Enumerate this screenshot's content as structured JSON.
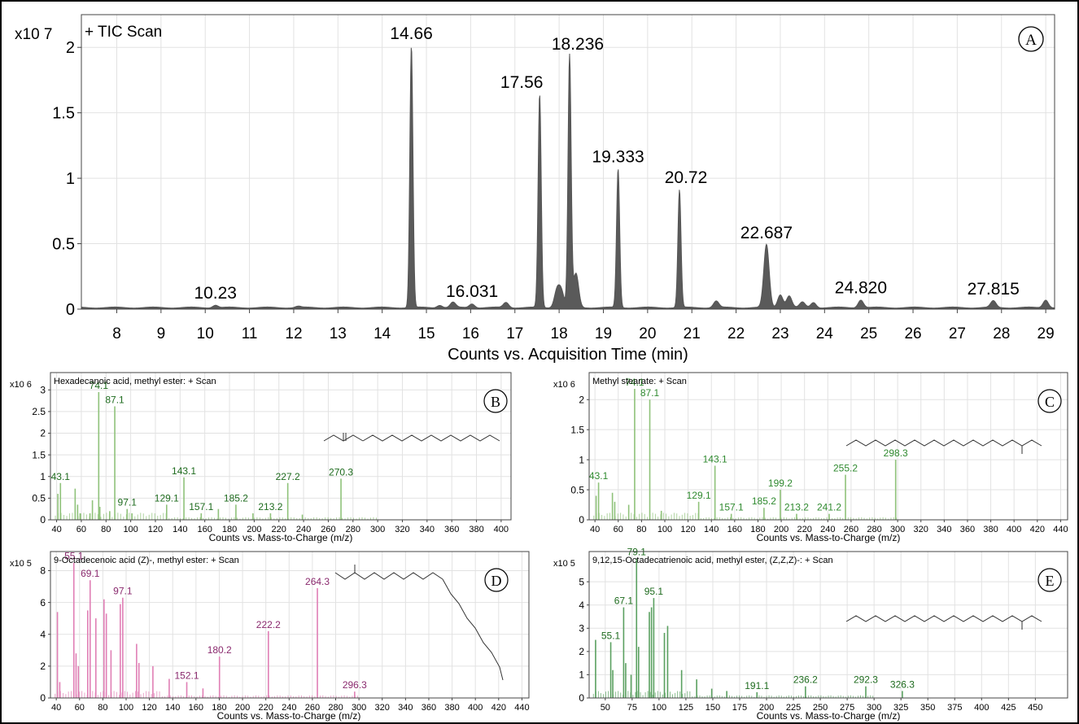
{
  "chart_data": [
    {
      "panel": "A",
      "type": "line",
      "title": "+ TIC Scan",
      "multiplier": "x10 7",
      "xlabel": "Counts vs. Acquisition Time (min)",
      "ylabel": "",
      "xlim": [
        7.2,
        29.2
      ],
      "ylim": [
        0,
        2.25
      ],
      "xticks": [
        "8",
        "9",
        "10",
        "11",
        "12",
        "13",
        "14",
        "15",
        "16",
        "17",
        "18",
        "19",
        "20",
        "21",
        "22",
        "23",
        "24",
        "25",
        "26",
        "27",
        "28",
        "29"
      ],
      "yticks": [
        "0",
        "0.5",
        "1",
        "1.5",
        "2"
      ],
      "grid": true,
      "line_color": "#555555",
      "peaks": [
        {
          "rt": 10.23,
          "height": 0.02,
          "label": "10.23"
        },
        {
          "rt": 12.1,
          "height": 0.01
        },
        {
          "rt": 14.66,
          "height": 2.0,
          "label": "14.66"
        },
        {
          "rt": 15.3,
          "height": 0.02
        },
        {
          "rt": 15.6,
          "height": 0.04
        },
        {
          "rt": 16.031,
          "height": 0.03,
          "label": "16.031"
        },
        {
          "rt": 16.8,
          "height": 0.04
        },
        {
          "rt": 17.56,
          "height": 1.63,
          "label": "17.56"
        },
        {
          "rt": 17.95,
          "height": 0.13
        },
        {
          "rt": 18.05,
          "height": 0.12
        },
        {
          "rt": 18.236,
          "height": 1.92,
          "label": "18.236"
        },
        {
          "rt": 18.38,
          "height": 0.26
        },
        {
          "rt": 19.333,
          "height": 1.06,
          "label": "19.333"
        },
        {
          "rt": 20.72,
          "height": 0.9,
          "label": "20.72"
        },
        {
          "rt": 21.55,
          "height": 0.05
        },
        {
          "rt": 22.687,
          "height": 0.48,
          "label": "22.687"
        },
        {
          "rt": 23.0,
          "height": 0.1
        },
        {
          "rt": 23.2,
          "height": 0.09
        },
        {
          "rt": 23.5,
          "height": 0.04
        },
        {
          "rt": 23.75,
          "height": 0.04
        },
        {
          "rt": 24.82,
          "height": 0.06,
          "label": "24.820"
        },
        {
          "rt": 27.815,
          "height": 0.05,
          "label": "27.815"
        },
        {
          "rt": 29.0,
          "height": 0.06
        }
      ]
    },
    {
      "panel": "B",
      "type": "bar",
      "title": "Hexadecanoic acid, methyl ester: + Scan",
      "multiplier": "x10 6",
      "xlabel": "Counts vs. Mass-to-Charge (m/z)",
      "ylabel": "",
      "xlim": [
        35,
        408
      ],
      "ylim": [
        0,
        3.4
      ],
      "xticks": [
        "40",
        "60",
        "80",
        "100",
        "120",
        "140",
        "160",
        "180",
        "200",
        "220",
        "240",
        "260",
        "280",
        "300",
        "320",
        "340",
        "360",
        "380",
        "400"
      ],
      "yticks": [
        "0",
        "0.5",
        "1",
        "1.5",
        "2",
        "2.5",
        "3"
      ],
      "bar_color": "#8fc27a",
      "label_color": "#1e6b1e",
      "peaks": [
        {
          "mz": 41,
          "value": 0.6
        },
        {
          "mz": 43.1,
          "value": 0.85,
          "label": "43.1"
        },
        {
          "mz": 55,
          "value": 0.72
        },
        {
          "mz": 57,
          "value": 0.35
        },
        {
          "mz": 59,
          "value": 0.15
        },
        {
          "mz": 67,
          "value": 0.15
        },
        {
          "mz": 69,
          "value": 0.45
        },
        {
          "mz": 74.1,
          "value": 2.95,
          "label": "74.1"
        },
        {
          "mz": 75,
          "value": 0.3
        },
        {
          "mz": 83,
          "value": 0.2
        },
        {
          "mz": 87.1,
          "value": 2.62,
          "label": "87.1"
        },
        {
          "mz": 97.1,
          "value": 0.25,
          "label": "97.1"
        },
        {
          "mz": 101,
          "value": 0.15
        },
        {
          "mz": 129.1,
          "value": 0.35,
          "label": "129.1"
        },
        {
          "mz": 143.1,
          "value": 0.98,
          "label": "143.1"
        },
        {
          "mz": 157.1,
          "value": 0.15,
          "label": "157.1"
        },
        {
          "mz": 171,
          "value": 0.25
        },
        {
          "mz": 185.2,
          "value": 0.35,
          "label": "185.2"
        },
        {
          "mz": 199,
          "value": 0.15
        },
        {
          "mz": 213.2,
          "value": 0.15,
          "label": "213.2"
        },
        {
          "mz": 227.2,
          "value": 0.85,
          "label": "227.2"
        },
        {
          "mz": 239,
          "value": 0.12
        },
        {
          "mz": 270.3,
          "value": 0.95,
          "label": "270.3"
        }
      ]
    },
    {
      "panel": "C",
      "type": "bar",
      "title": "Methyl stearate: + Scan",
      "multiplier": "x10 6",
      "xlabel": "Counts vs. Mass-to-Charge (m/z)",
      "ylabel": "",
      "xlim": [
        35,
        446
      ],
      "ylim": [
        0,
        2.45
      ],
      "xticks": [
        "40",
        "60",
        "80",
        "100",
        "120",
        "140",
        "160",
        "180",
        "200",
        "220",
        "240",
        "260",
        "280",
        "300",
        "320",
        "340",
        "360",
        "380",
        "400",
        "420",
        "440"
      ],
      "yticks": [
        "0",
        "0.5",
        "1",
        "1.5",
        "2"
      ],
      "bar_color": "#8fc27a",
      "label_color": "#2f8a2f",
      "peaks": [
        {
          "mz": 41,
          "value": 0.4
        },
        {
          "mz": 43.1,
          "value": 0.62,
          "label": "43.1"
        },
        {
          "mz": 55,
          "value": 0.45
        },
        {
          "mz": 57,
          "value": 0.3
        },
        {
          "mz": 69,
          "value": 0.25
        },
        {
          "mz": 74.1,
          "value": 2.18,
          "label": "74.1"
        },
        {
          "mz": 87.1,
          "value": 2.0,
          "label": "87.1"
        },
        {
          "mz": 97,
          "value": 0.15
        },
        {
          "mz": 129.1,
          "value": 0.3,
          "label": "129.1"
        },
        {
          "mz": 143.1,
          "value": 0.9,
          "label": "143.1"
        },
        {
          "mz": 157.1,
          "value": 0.1,
          "label": "157.1"
        },
        {
          "mz": 185.2,
          "value": 0.2,
          "label": "185.2"
        },
        {
          "mz": 199.2,
          "value": 0.5,
          "label": "199.2"
        },
        {
          "mz": 213.2,
          "value": 0.1,
          "label": "213.2"
        },
        {
          "mz": 241.2,
          "value": 0.1,
          "label": "241.2"
        },
        {
          "mz": 255.2,
          "value": 0.75,
          "label": "255.2"
        },
        {
          "mz": 298.3,
          "value": 1.0,
          "label": "298.3"
        }
      ]
    },
    {
      "panel": "D",
      "type": "bar",
      "title": "9-Octadecenoic acid (Z)-, methyl ester: + Scan",
      "multiplier": "x10 5",
      "xlabel": "Counts vs. Mass-to-Charge (m/z)",
      "ylabel": "",
      "xlim": [
        35,
        446
      ],
      "ylim": [
        0,
        9.2
      ],
      "xticks": [
        "40",
        "60",
        "80",
        "100",
        "120",
        "140",
        "160",
        "180",
        "200",
        "220",
        "240",
        "260",
        "280",
        "300",
        "320",
        "340",
        "360",
        "380",
        "400",
        "420",
        "440"
      ],
      "yticks": [
        "0",
        "2",
        "4",
        "6",
        "8"
      ],
      "bar_color": "#e07fb5",
      "label_color": "#8a2a6e",
      "peaks": [
        {
          "mz": 41,
          "value": 5.4
        },
        {
          "mz": 43,
          "value": 1.0
        },
        {
          "mz": 55.1,
          "value": 8.5,
          "label": "55.1"
        },
        {
          "mz": 57,
          "value": 2.8
        },
        {
          "mz": 59,
          "value": 2.0
        },
        {
          "mz": 67,
          "value": 5.5
        },
        {
          "mz": 69.1,
          "value": 7.4,
          "label": "69.1"
        },
        {
          "mz": 74,
          "value": 5.0
        },
        {
          "mz": 81,
          "value": 6.2
        },
        {
          "mz": 83,
          "value": 5.3
        },
        {
          "mz": 87,
          "value": 3.0
        },
        {
          "mz": 95,
          "value": 5.9
        },
        {
          "mz": 97.1,
          "value": 6.3,
          "label": "97.1"
        },
        {
          "mz": 109,
          "value": 3.4
        },
        {
          "mz": 111,
          "value": 2.2
        },
        {
          "mz": 123,
          "value": 2.0
        },
        {
          "mz": 137,
          "value": 1.2
        },
        {
          "mz": 152.1,
          "value": 1.0,
          "label": "152.1"
        },
        {
          "mz": 166,
          "value": 0.6
        },
        {
          "mz": 180.2,
          "value": 2.6,
          "label": "180.2"
        },
        {
          "mz": 222.2,
          "value": 4.2,
          "label": "222.2"
        },
        {
          "mz": 264.3,
          "value": 6.9,
          "label": "264.3"
        },
        {
          "mz": 296.3,
          "value": 0.4,
          "label": "296.3"
        }
      ]
    },
    {
      "panel": "E",
      "type": "bar",
      "title": "9,12,15-Octadecatrienoic acid, methyl ester, (Z,Z,Z)-: + Scan",
      "multiplier": "x10 5",
      "xlabel": "Counts vs. Mass-to-Charge (m/z)",
      "ylabel": "",
      "xlim": [
        35,
        480
      ],
      "ylim": [
        0,
        6.3
      ],
      "xticks": [
        "50",
        "75",
        "100",
        "125",
        "150",
        "175",
        "200",
        "225",
        "250",
        "275",
        "300",
        "325",
        "350",
        "375",
        "400",
        "425",
        "450"
      ],
      "yticks": [
        "0",
        "1",
        "2",
        "3",
        "4",
        "5"
      ],
      "bar_color": "#5aa060",
      "label_color": "#1e6b1e",
      "peaks": [
        {
          "mz": 41,
          "value": 2.5
        },
        {
          "mz": 55.1,
          "value": 2.4,
          "label": "55.1"
        },
        {
          "mz": 57,
          "value": 1.2
        },
        {
          "mz": 67.1,
          "value": 3.9,
          "label": "67.1"
        },
        {
          "mz": 69,
          "value": 1.5
        },
        {
          "mz": 74,
          "value": 1.0
        },
        {
          "mz": 79.1,
          "value": 6.0,
          "label": "79.1"
        },
        {
          "mz": 81,
          "value": 2.2
        },
        {
          "mz": 91,
          "value": 3.7
        },
        {
          "mz": 93,
          "value": 3.9
        },
        {
          "mz": 95.1,
          "value": 4.3,
          "label": "95.1"
        },
        {
          "mz": 105,
          "value": 2.8
        },
        {
          "mz": 108,
          "value": 3.1
        },
        {
          "mz": 121,
          "value": 1.2
        },
        {
          "mz": 135,
          "value": 0.8
        },
        {
          "mz": 149,
          "value": 0.4
        },
        {
          "mz": 163,
          "value": 0.3
        },
        {
          "mz": 191.1,
          "value": 0.25,
          "label": "191.1"
        },
        {
          "mz": 236.2,
          "value": 0.5,
          "label": "236.2"
        },
        {
          "mz": 292.3,
          "value": 0.5,
          "label": "292.3"
        },
        {
          "mz": 326.3,
          "value": 0.3,
          "label": "326.3"
        }
      ]
    }
  ]
}
